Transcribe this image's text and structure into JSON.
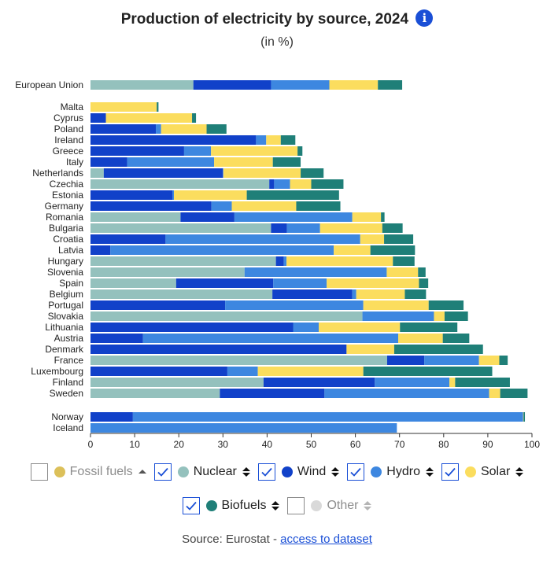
{
  "header": {
    "title": "Production of electricity by source, 2024",
    "subtitle": "(in %)",
    "info_icon": "i"
  },
  "colors": {
    "fossil": "#dcc05a",
    "nuclear": "#94c1bd",
    "wind": "#1141c9",
    "hydro": "#3d87e0",
    "solar": "#fbdd5e",
    "biofuels": "#1f7f78",
    "other": "#d9d9d9",
    "checkbox_on": "#1a4fd6"
  },
  "legend": {
    "items": [
      {
        "key": "fossil",
        "label": "Fossil fuels",
        "checked": false,
        "sort": "up"
      },
      {
        "key": "nuclear",
        "label": "Nuclear",
        "checked": true,
        "sort": "both"
      },
      {
        "key": "wind",
        "label": "Wind",
        "checked": true,
        "sort": "both"
      },
      {
        "key": "hydro",
        "label": "Hydro",
        "checked": true,
        "sort": "both"
      },
      {
        "key": "solar",
        "label": "Solar",
        "checked": true,
        "sort": "both"
      },
      {
        "key": "biofuels",
        "label": "Biofuels",
        "checked": true,
        "sort": "both"
      },
      {
        "key": "other",
        "label": "Other",
        "checked": false,
        "sort": "both-grey"
      }
    ]
  },
  "footer": {
    "source_prefix": "Source: Eurostat - ",
    "link_text": "access to dataset"
  },
  "chart_data": {
    "type": "bar",
    "orientation": "horizontal",
    "stacked": true,
    "title": "Production of electricity by source, 2024",
    "subtitle": "(in %)",
    "xlim": [
      0,
      100
    ],
    "xticks": [
      0,
      10,
      20,
      30,
      40,
      50,
      60,
      70,
      80,
      90,
      100
    ],
    "grid": false,
    "series_order": [
      "nuclear",
      "wind",
      "hydro",
      "solar",
      "biofuels"
    ],
    "series_labels": {
      "nuclear": "Nuclear",
      "wind": "Wind",
      "hydro": "Hydro",
      "solar": "Solar",
      "biofuels": "Biofuels"
    },
    "rows": [
      {
        "label": "European Union",
        "group": 0,
        "nuclear": 23.3,
        "wind": 17.6,
        "hydro": 13.2,
        "solar": 11.0,
        "biofuels": 5.5
      },
      {
        "label": "Malta",
        "group": 1,
        "nuclear": 0,
        "wind": 0,
        "hydro": 0,
        "solar": 15.0,
        "biofuels": 0.4
      },
      {
        "label": "Cyprus",
        "group": 1,
        "nuclear": 0,
        "wind": 3.5,
        "hydro": 0,
        "solar": 19.5,
        "biofuels": 0.9
      },
      {
        "label": "Poland",
        "group": 1,
        "nuclear": 0,
        "wind": 14.8,
        "hydro": 1.2,
        "solar": 10.3,
        "biofuels": 4.5
      },
      {
        "label": "Ireland",
        "group": 1,
        "nuclear": 0,
        "wind": 37.5,
        "hydro": 2.3,
        "solar": 3.3,
        "biofuels": 3.3
      },
      {
        "label": "Greece",
        "group": 1,
        "nuclear": 0,
        "wind": 21.2,
        "hydro": 6.1,
        "solar": 19.6,
        "biofuels": 1.1
      },
      {
        "label": "Italy",
        "group": 1,
        "nuclear": 0,
        "wind": 8.3,
        "hydro": 19.7,
        "solar": 13.3,
        "biofuels": 6.3
      },
      {
        "label": "Netherlands",
        "group": 1,
        "nuclear": 3.0,
        "wind": 27.0,
        "hydro": 0.1,
        "solar": 17.5,
        "biofuels": 5.2
      },
      {
        "label": "Czechia",
        "group": 1,
        "nuclear": 40.5,
        "wind": 1.1,
        "hydro": 3.6,
        "solar": 4.8,
        "biofuels": 7.3
      },
      {
        "label": "Estonia",
        "group": 1,
        "nuclear": 0,
        "wind": 18.6,
        "hydro": 0.3,
        "solar": 16.5,
        "biofuels": 20.9
      },
      {
        "label": "Germany",
        "group": 1,
        "nuclear": 0,
        "wind": 27.4,
        "hydro": 4.6,
        "solar": 14.6,
        "biofuels": 10.0
      },
      {
        "label": "Romania",
        "group": 1,
        "nuclear": 20.4,
        "wind": 12.2,
        "hydro": 26.7,
        "solar": 6.5,
        "biofuels": 0.8
      },
      {
        "label": "Bulgaria",
        "group": 1,
        "nuclear": 40.9,
        "wind": 3.6,
        "hydro": 7.5,
        "solar": 14.1,
        "biofuels": 4.6
      },
      {
        "label": "Croatia",
        "group": 1,
        "nuclear": 0,
        "wind": 17.0,
        "hydro": 44.1,
        "solar": 5.4,
        "biofuels": 6.6
      },
      {
        "label": "Latvia",
        "group": 1,
        "nuclear": 0,
        "wind": 4.5,
        "hydro": 50.6,
        "solar": 8.3,
        "biofuels": 10.1
      },
      {
        "label": "Hungary",
        "group": 1,
        "nuclear": 42.0,
        "wind": 1.8,
        "hydro": 0.6,
        "solar": 24.1,
        "biofuels": 4.9
      },
      {
        "label": "Slovenia",
        "group": 1,
        "nuclear": 34.9,
        "wind": 0,
        "hydro": 32.2,
        "solar": 7.1,
        "biofuels": 1.7
      },
      {
        "label": "Spain",
        "group": 1,
        "nuclear": 19.4,
        "wind": 22.0,
        "hydro": 12.1,
        "solar": 20.9,
        "biofuels": 2.1
      },
      {
        "label": "Belgium",
        "group": 1,
        "nuclear": 41.2,
        "wind": 18.1,
        "hydro": 0.9,
        "solar": 11.0,
        "biofuels": 4.8
      },
      {
        "label": "Portugal",
        "group": 1,
        "nuclear": 0,
        "wind": 30.5,
        "hydro": 31.3,
        "solar": 14.8,
        "biofuels": 7.9
      },
      {
        "label": "Slovakia",
        "group": 1,
        "nuclear": 61.6,
        "wind": 0,
        "hydro": 16.2,
        "solar": 2.4,
        "biofuels": 5.3
      },
      {
        "label": "Lithuania",
        "group": 1,
        "nuclear": 0,
        "wind": 45.9,
        "hydro": 5.8,
        "solar": 18.4,
        "biofuels": 13.0
      },
      {
        "label": "Austria",
        "group": 1,
        "nuclear": 0,
        "wind": 11.9,
        "hydro": 57.8,
        "solar": 10.1,
        "biofuels": 6.0
      },
      {
        "label": "Denmark",
        "group": 1,
        "nuclear": 0,
        "wind": 58.0,
        "hydro": 0,
        "solar": 10.8,
        "biofuels": 20.1
      },
      {
        "label": "France",
        "group": 1,
        "nuclear": 67.2,
        "wind": 8.4,
        "hydro": 12.4,
        "solar": 4.6,
        "biofuels": 1.9
      },
      {
        "label": "Luxembourg",
        "group": 1,
        "nuclear": 0,
        "wind": 31.0,
        "hydro": 6.9,
        "solar": 23.9,
        "biofuels": 29.2
      },
      {
        "label": "Finland",
        "group": 1,
        "nuclear": 39.2,
        "wind": 25.2,
        "hydro": 16.9,
        "solar": 1.3,
        "biofuels": 12.4
      },
      {
        "label": "Sweden",
        "group": 1,
        "nuclear": 29.3,
        "wind": 23.7,
        "hydro": 37.3,
        "solar": 2.5,
        "biofuels": 6.2
      },
      {
        "label": "Norway",
        "group": 2,
        "nuclear": 0,
        "wind": 9.6,
        "hydro": 88.4,
        "solar": 0.1,
        "biofuels": 0.3
      },
      {
        "label": "Iceland",
        "group": 2,
        "nuclear": 0,
        "wind": 0,
        "hydro": 69.4,
        "solar": 0,
        "biofuels": 0
      }
    ]
  }
}
